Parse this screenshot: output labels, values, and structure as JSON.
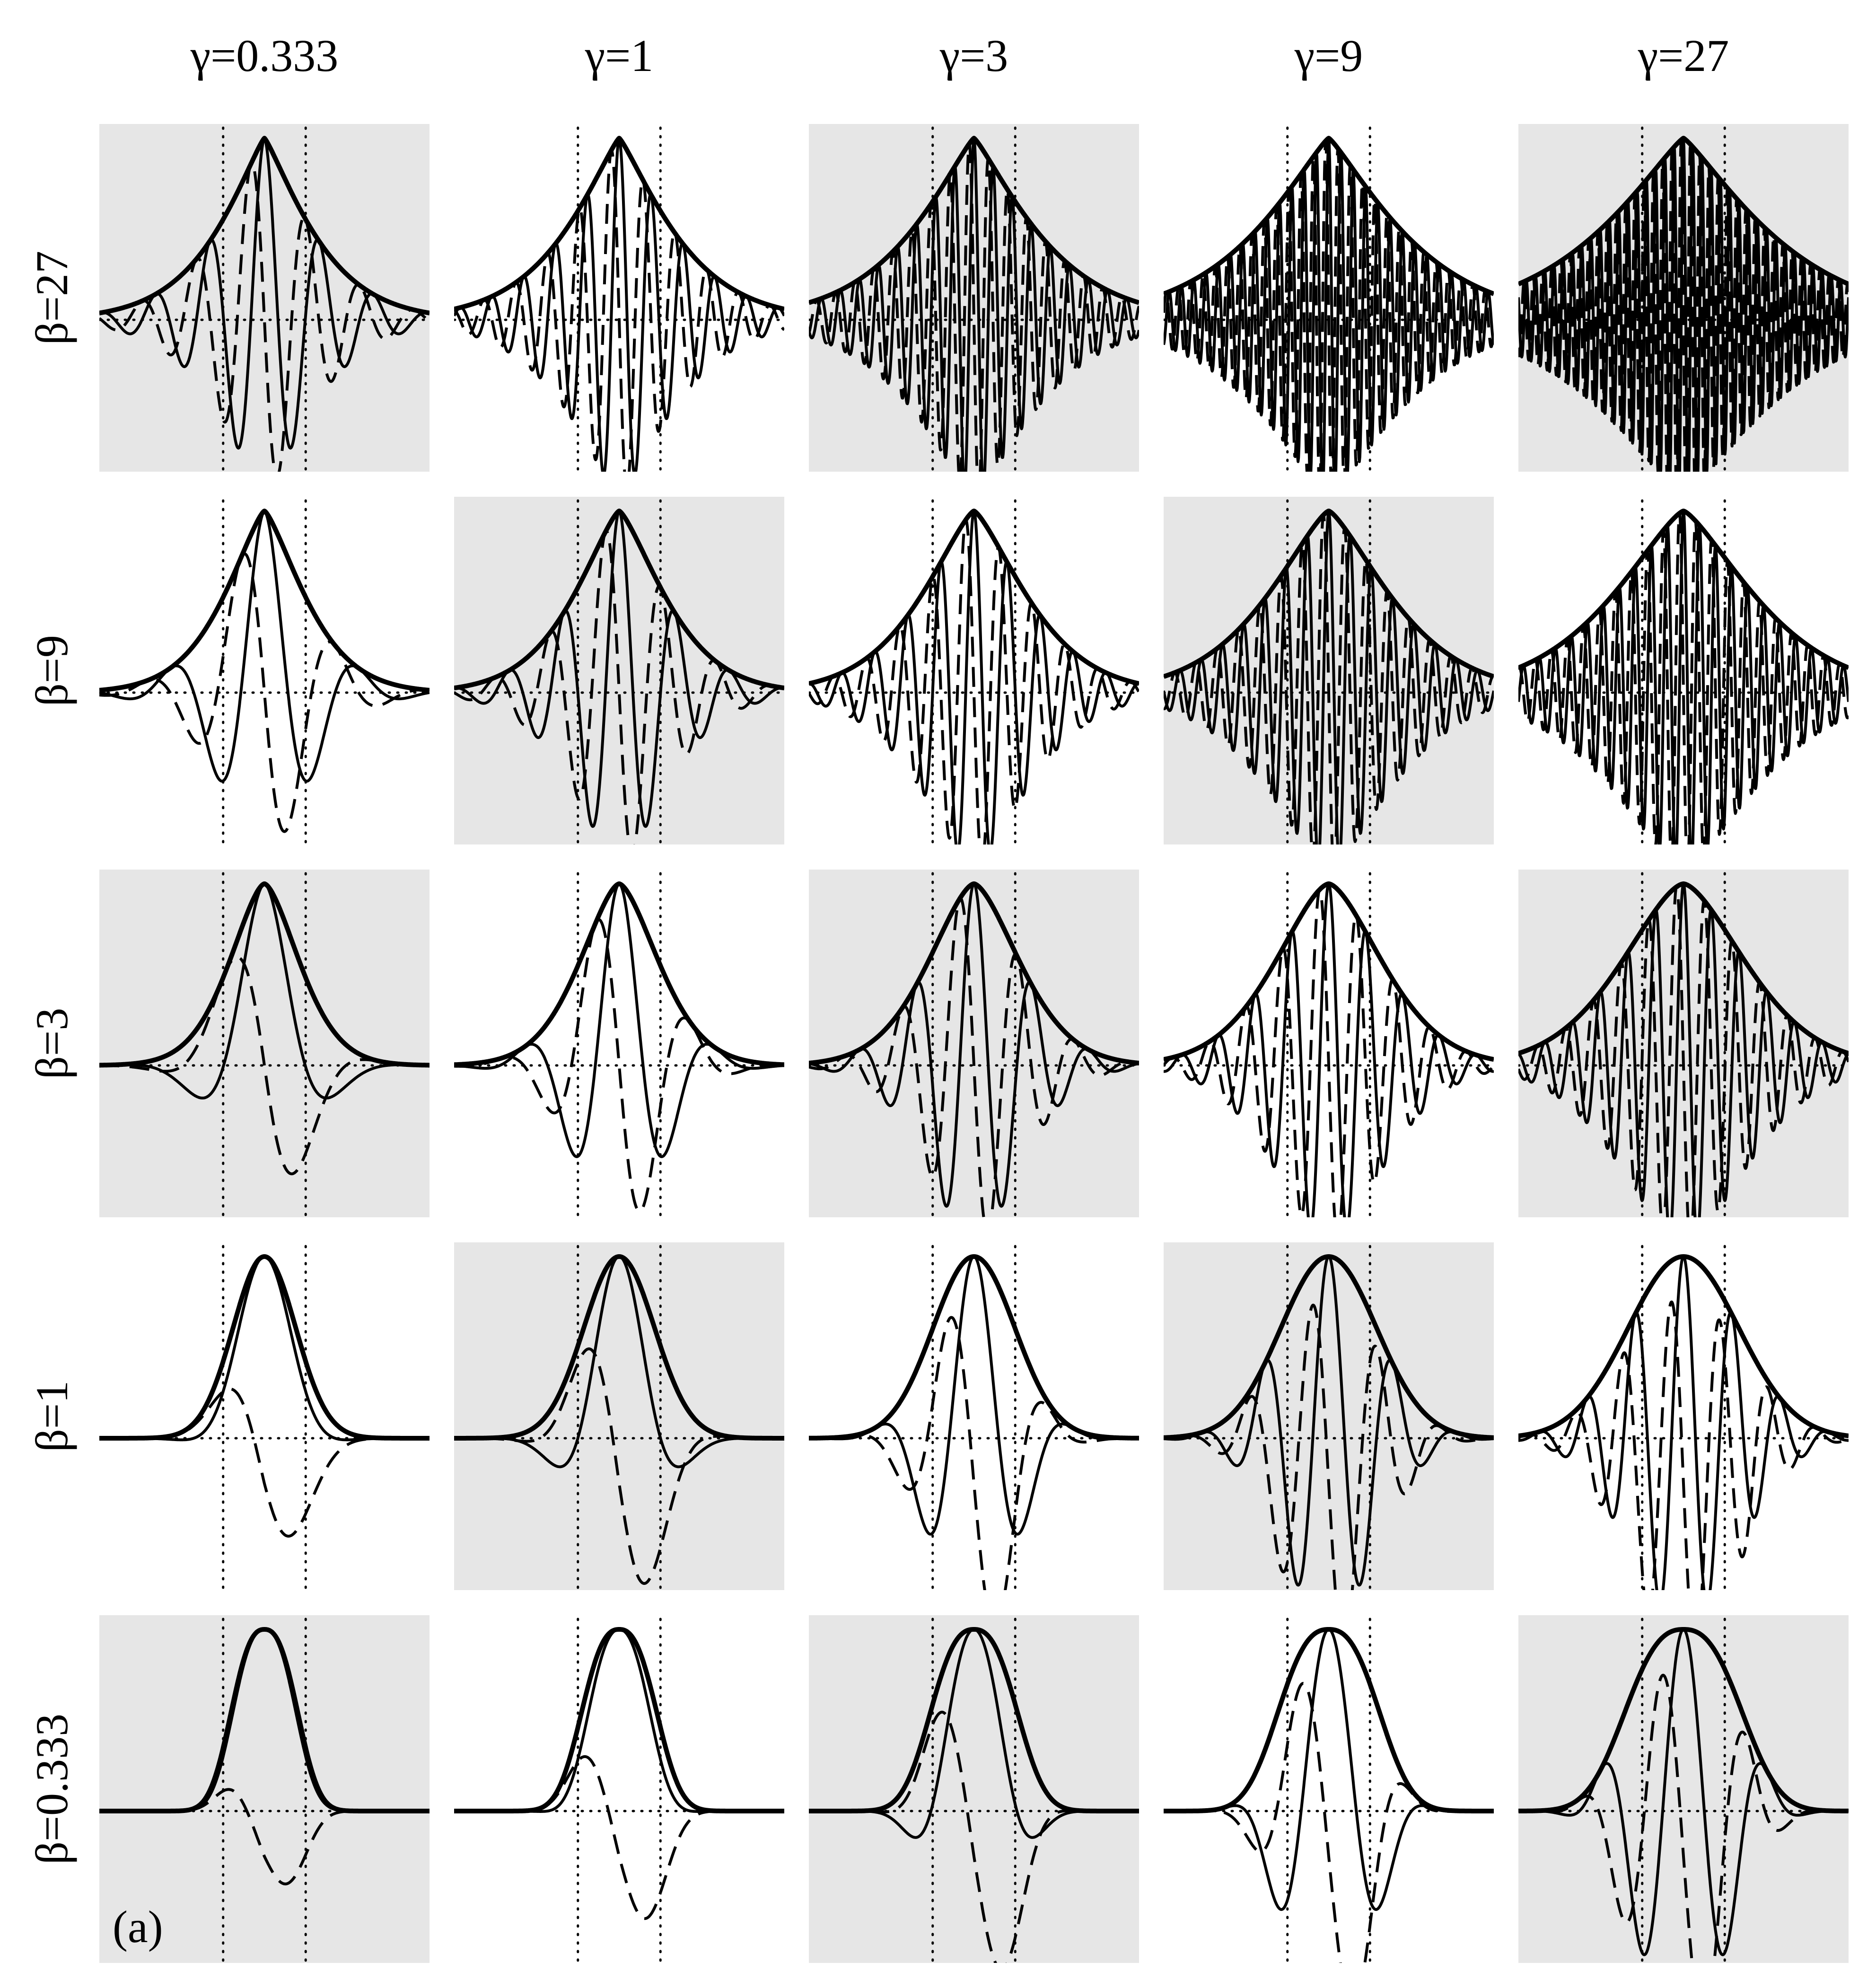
{
  "figure": {
    "tag": "(a)"
  },
  "chart_data": {
    "type": "line",
    "gamma_labels": [
      "γ=0.333",
      "γ=1",
      "γ=3",
      "γ=9",
      "γ=27"
    ],
    "beta_labels": [
      "β=27",
      "β=9",
      "β=3",
      "β=1",
      "β=0.333"
    ],
    "gamma_values": [
      0.333,
      1,
      3,
      9,
      27
    ],
    "beta_values": [
      27,
      9,
      3,
      1,
      0.333
    ],
    "shaded_panels": [
      [
        true,
        false,
        true,
        false,
        true
      ],
      [
        false,
        true,
        false,
        true,
        false
      ],
      [
        true,
        false,
        true,
        false,
        true
      ],
      [
        false,
        true,
        false,
        true,
        false
      ],
      [
        true,
        false,
        true,
        false,
        true
      ]
    ],
    "panel_background": "#e6e6e6",
    "line_color": "#000000",
    "series": [
      {
        "style": "thick solid"
      },
      {
        "style": "solid"
      },
      {
        "style": "dashed"
      },
      {
        "style": "dotted"
      }
    ],
    "x_range": [
      -4,
      4
    ],
    "guides_x": [
      -1,
      1
    ],
    "y_range": [
      -0.85,
      1.05
    ],
    "grid": false,
    "legend": "none"
  }
}
